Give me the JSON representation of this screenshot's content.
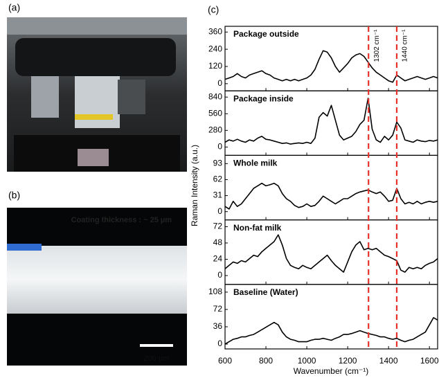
{
  "panels": {
    "a": "(a)",
    "b": "(b)",
    "c": "(c)"
  },
  "photo_b": {
    "caption": "Coating thickness : ~ 25 µm",
    "scale_bar": "200 µm"
  },
  "figure": {
    "ylabel": "Raman Intensity (a.u.)",
    "xlabel": "Wavenumber (cm⁻¹)",
    "xlim": [
      600,
      1640
    ],
    "xticks": [
      600,
      800,
      1000,
      1200,
      1400,
      1600
    ],
    "reference_color": "#e8302a",
    "reference_lines": [
      {
        "value": 1302,
        "label": "1302 cm⁻¹"
      },
      {
        "value": 1440,
        "label": "1440 cm⁻¹"
      }
    ]
  },
  "chart_data": [
    {
      "type": "line",
      "title": "Package outside",
      "color": "#000000",
      "ylim": [
        -50,
        400
      ],
      "yticks": [
        0,
        120,
        240,
        360
      ],
      "x": [
        600,
        620,
        640,
        660,
        680,
        700,
        720,
        740,
        760,
        780,
        800,
        820,
        840,
        860,
        880,
        900,
        920,
        940,
        960,
        980,
        1000,
        1020,
        1040,
        1060,
        1080,
        1100,
        1120,
        1140,
        1160,
        1180,
        1200,
        1220,
        1240,
        1260,
        1280,
        1300,
        1320,
        1340,
        1360,
        1380,
        1400,
        1420,
        1440,
        1460,
        1480,
        1500,
        1520,
        1540,
        1560,
        1580,
        1600,
        1620,
        1640
      ],
      "values": [
        30,
        40,
        50,
        70,
        50,
        40,
        60,
        70,
        80,
        90,
        70,
        60,
        40,
        30,
        20,
        30,
        20,
        30,
        20,
        30,
        40,
        60,
        100,
        170,
        230,
        220,
        180,
        120,
        80,
        110,
        140,
        180,
        200,
        210,
        190,
        150,
        110,
        80,
        60,
        40,
        20,
        10,
        60,
        40,
        20,
        30,
        40,
        50,
        40,
        30,
        40,
        50,
        40
      ]
    },
    {
      "type": "line",
      "title": "Package inside",
      "color": "#000000",
      "ylim": [
        -140,
        945
      ],
      "yticks": [
        0,
        280,
        560,
        840
      ],
      "x": [
        600,
        620,
        640,
        660,
        680,
        700,
        720,
        740,
        760,
        780,
        800,
        820,
        840,
        860,
        880,
        900,
        920,
        940,
        960,
        980,
        1000,
        1020,
        1040,
        1060,
        1080,
        1100,
        1120,
        1140,
        1160,
        1180,
        1200,
        1220,
        1240,
        1260,
        1280,
        1300,
        1320,
        1340,
        1360,
        1380,
        1400,
        1420,
        1440,
        1460,
        1480,
        1500,
        1520,
        1540,
        1560,
        1580,
        1600,
        1620,
        1640
      ],
      "values": [
        80,
        120,
        100,
        130,
        100,
        80,
        120,
        100,
        150,
        180,
        130,
        120,
        100,
        80,
        60,
        70,
        50,
        60,
        70,
        60,
        80,
        60,
        150,
        500,
        580,
        520,
        700,
        450,
        200,
        120,
        150,
        180,
        260,
        380,
        450,
        820,
        300,
        120,
        80,
        180,
        120,
        200,
        420,
        320,
        120,
        100,
        80,
        120,
        100,
        90,
        110,
        100,
        120
      ]
    },
    {
      "type": "line",
      "title": "Whole milk",
      "color": "#000000",
      "ylim": [
        -16,
        109
      ],
      "yticks": [
        0,
        31,
        62,
        93
      ],
      "x": [
        600,
        620,
        640,
        660,
        680,
        700,
        720,
        740,
        760,
        780,
        800,
        820,
        840,
        860,
        880,
        900,
        920,
        940,
        960,
        980,
        1000,
        1020,
        1040,
        1060,
        1080,
        1100,
        1120,
        1140,
        1160,
        1180,
        1200,
        1220,
        1240,
        1260,
        1280,
        1300,
        1320,
        1340,
        1360,
        1380,
        1400,
        1420,
        1440,
        1460,
        1480,
        1500,
        1520,
        1540,
        1560,
        1580,
        1600,
        1620,
        1640
      ],
      "values": [
        10,
        5,
        20,
        10,
        15,
        25,
        35,
        45,
        50,
        55,
        50,
        52,
        55,
        50,
        35,
        25,
        20,
        12,
        8,
        10,
        15,
        10,
        12,
        20,
        30,
        25,
        20,
        15,
        20,
        25,
        25,
        30,
        35,
        38,
        40,
        42,
        38,
        35,
        38,
        30,
        20,
        22,
        45,
        25,
        15,
        18,
        15,
        20,
        15,
        18,
        20,
        18,
        20
      ]
    },
    {
      "type": "line",
      "title": "Non-fat milk",
      "color": "#000000",
      "ylim": [
        -13,
        82
      ],
      "yticks": [
        0,
        24,
        48,
        72
      ],
      "x": [
        600,
        620,
        640,
        660,
        680,
        700,
        720,
        740,
        760,
        780,
        800,
        820,
        840,
        860,
        880,
        900,
        920,
        940,
        960,
        980,
        1000,
        1020,
        1040,
        1060,
        1080,
        1100,
        1120,
        1140,
        1160,
        1180,
        1200,
        1220,
        1240,
        1260,
        1280,
        1300,
        1320,
        1340,
        1360,
        1380,
        1400,
        1420,
        1440,
        1460,
        1480,
        1500,
        1520,
        1540,
        1560,
        1580,
        1600,
        1620,
        1640
      ],
      "values": [
        10,
        15,
        20,
        18,
        22,
        20,
        25,
        30,
        28,
        35,
        40,
        45,
        50,
        60,
        45,
        25,
        15,
        12,
        10,
        15,
        12,
        10,
        15,
        20,
        25,
        30,
        22,
        15,
        10,
        5,
        20,
        35,
        45,
        50,
        38,
        40,
        38,
        40,
        35,
        30,
        28,
        25,
        22,
        8,
        5,
        12,
        10,
        12,
        10,
        15,
        18,
        20,
        25
      ]
    },
    {
      "type": "line",
      "title": "Baseline (Water)",
      "color": "#000000",
      "ylim": [
        -10,
        124
      ],
      "yticks": [
        0,
        36,
        72,
        108
      ],
      "x": [
        600,
        620,
        640,
        660,
        680,
        700,
        720,
        740,
        760,
        780,
        800,
        820,
        840,
        860,
        880,
        900,
        920,
        940,
        960,
        980,
        1000,
        1020,
        1040,
        1060,
        1080,
        1100,
        1120,
        1140,
        1160,
        1180,
        1200,
        1220,
        1240,
        1260,
        1280,
        1300,
        1320,
        1340,
        1360,
        1380,
        1400,
        1420,
        1440,
        1460,
        1480,
        1500,
        1520,
        1540,
        1560,
        1580,
        1600,
        1620,
        1640
      ],
      "values": [
        0,
        5,
        10,
        12,
        15,
        15,
        18,
        20,
        25,
        30,
        35,
        40,
        45,
        40,
        25,
        15,
        10,
        8,
        5,
        5,
        5,
        8,
        10,
        10,
        12,
        10,
        8,
        12,
        15,
        20,
        20,
        22,
        25,
        28,
        25,
        22,
        20,
        18,
        15,
        15,
        12,
        10,
        12,
        8,
        5,
        8,
        10,
        15,
        20,
        25,
        40,
        55,
        50
      ]
    }
  ]
}
